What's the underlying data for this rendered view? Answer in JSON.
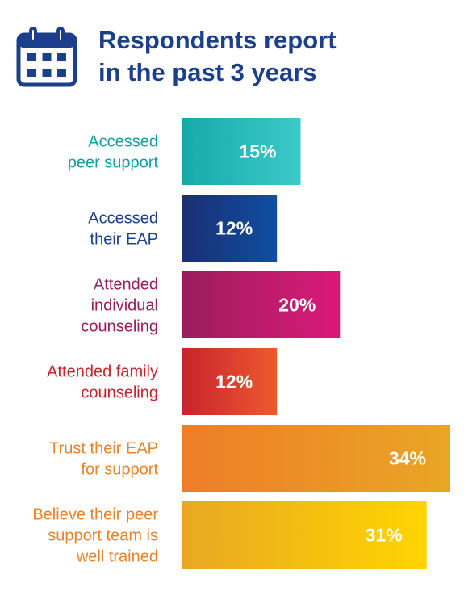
{
  "header": {
    "icon": "calendar-icon",
    "title_line1": "Respondents report",
    "title_line2": "in the past 3 years",
    "title_color": "#1b3f8b"
  },
  "chart_data": {
    "type": "bar",
    "orientation": "horizontal",
    "categories": [
      [
        "Accessed",
        "peer support"
      ],
      [
        "Accessed",
        "their EAP"
      ],
      [
        "Attended",
        "individual",
        "counseling"
      ],
      [
        "Attended family",
        "counseling"
      ],
      [
        "Trust their EAP",
        "for support"
      ],
      [
        "Believe their peer",
        "support team is",
        "well trained"
      ]
    ],
    "values": [
      15,
      12,
      20,
      12,
      34,
      31
    ],
    "value_labels": [
      "15%",
      "12%",
      "20%",
      "12%",
      "34%",
      "31%"
    ],
    "xlim": [
      0,
      34
    ],
    "grid": false,
    "legend": "none",
    "colors": [
      {
        "label": "#13a0a3",
        "from": "#15aaa9",
        "to": "#3cc9c9"
      },
      {
        "label": "#1b3f8b",
        "from": "#1b2f72",
        "to": "#0f4ea1"
      },
      {
        "label": "#9b1d5e",
        "from": "#9b1d5e",
        "to": "#db1a78"
      },
      {
        "label": "#c8232c",
        "from": "#c8232c",
        "to": "#ee5a2e"
      },
      {
        "label": "#e8832a",
        "from": "#ee7d28",
        "to": "#e9a625"
      },
      {
        "label": "#e8832a",
        "from": "#e8a723",
        "to": "#ffd500"
      }
    ]
  }
}
